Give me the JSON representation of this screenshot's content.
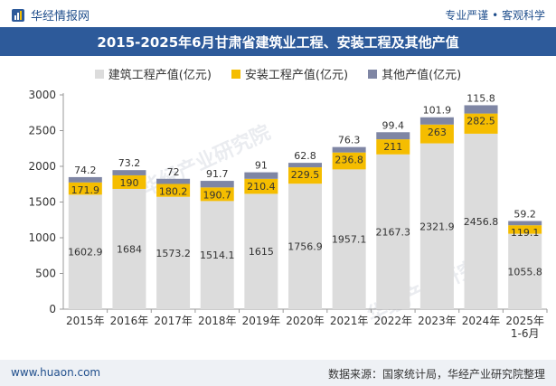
{
  "header": {
    "brand": "华经情报网",
    "tagline": "专业严谨 • 客观科学"
  },
  "footer": {
    "website": "www.huaon.com",
    "source": "数据来源：国家统计局，华经产业研究院整理"
  },
  "watermark": "华经产业研究院",
  "colors": {
    "construction": "#dcdcdc",
    "installation": "#f5bd00",
    "other": "#7f86a4",
    "title_bg": "#2d5a9a"
  },
  "chart_data": {
    "type": "bar",
    "stacked": true,
    "title": "2015-2025年6月甘肃省建筑业工程、安装工程及其他产值",
    "categories": [
      "2015年",
      "2016年",
      "2017年",
      "2018年",
      "2019年",
      "2020年",
      "2021年",
      "2022年",
      "2023年",
      "2024年",
      "2025年1-6月"
    ],
    "category_lines": [
      [
        "2015年"
      ],
      [
        "2016年"
      ],
      [
        "2017年"
      ],
      [
        "2018年"
      ],
      [
        "2019年"
      ],
      [
        "2020年"
      ],
      [
        "2021年"
      ],
      [
        "2022年"
      ],
      [
        "2023年"
      ],
      [
        "2024年"
      ],
      [
        "2025年",
        "1-6月"
      ]
    ],
    "series": [
      {
        "name": "建筑工程产值(亿元)",
        "key": "construction",
        "values": [
          1602.9,
          1684,
          1573.2,
          1514.1,
          1615,
          1756.9,
          1957.1,
          2167.3,
          2321.9,
          2456.8,
          1055.8
        ]
      },
      {
        "name": "安装工程产值(亿元)",
        "key": "installation",
        "values": [
          171.9,
          190,
          180.2,
          190.7,
          210.4,
          229.5,
          236.8,
          211,
          263,
          282.5,
          119.1
        ]
      },
      {
        "name": "其他产值(亿元)",
        "key": "other",
        "values": [
          74.2,
          73.2,
          72,
          91.7,
          91,
          62.8,
          76.3,
          99.4,
          101.9,
          115.8,
          59.2
        ]
      }
    ],
    "ylim": [
      0,
      3000
    ],
    "yticks": [
      0,
      500,
      1000,
      1500,
      2000,
      2500,
      3000
    ],
    "xlabel": "",
    "ylabel": "",
    "legend": "top-center"
  }
}
